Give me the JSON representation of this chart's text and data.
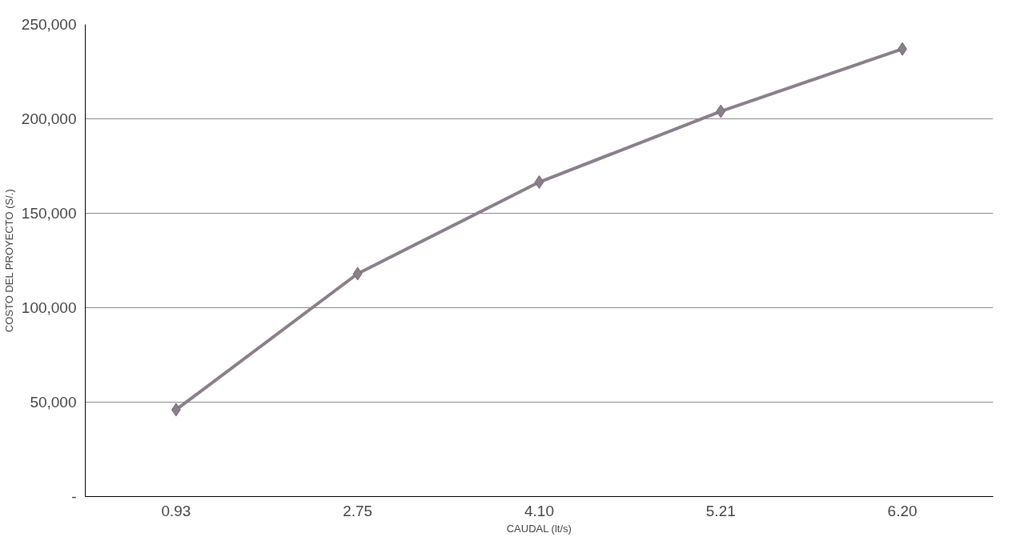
{
  "chart_data": {
    "type": "line",
    "xlabel": "CAUDAL (lt/s)",
    "ylabel": "COSTO DEL PROYECTO (S/.)",
    "categories": [
      "0.93",
      "2.75",
      "4.10",
      "5.21",
      "6.20"
    ],
    "series": [
      {
        "color": "#8a7f8a",
        "values": [
          46000,
          118000,
          166500,
          204000,
          237000
        ]
      }
    ],
    "ylim": [
      0,
      250000
    ],
    "yticks": [
      {
        "value": 0,
        "label": "-"
      },
      {
        "value": 50000,
        "label": "50,000"
      },
      {
        "value": 100000,
        "label": "100,000"
      },
      {
        "value": 150000,
        "label": "150,000"
      },
      {
        "value": 200000,
        "label": "200,000"
      },
      {
        "value": 250000,
        "label": "250,000"
      }
    ],
    "grid": "y",
    "marker": "diamond",
    "line_style": "solid"
  }
}
